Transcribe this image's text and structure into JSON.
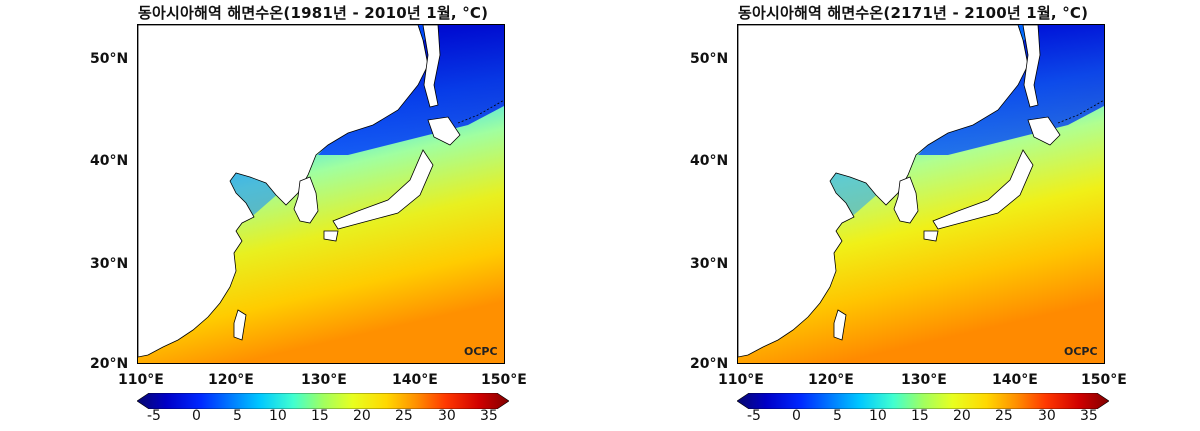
{
  "panels": [
    {
      "title": "동아시아해역 해면수온(1981년 - 2010년 1월, °C)",
      "lat_labels": [
        "50°N",
        "40°N",
        "30°N",
        "20°N"
      ],
      "lon_labels": [
        "110°E",
        "120°E",
        "130°E",
        "140°E",
        "150°E"
      ],
      "watermark": "OCPC",
      "colorbar_ticks": [
        "-5",
        "0",
        "5",
        "10",
        "15",
        "20",
        "25",
        "30",
        "35"
      ]
    },
    {
      "title": "동아시아해역 해면수온(2171년 - 2100년 1월, °C)",
      "lat_labels": [
        "50°N",
        "40°N",
        "30°N",
        "20°N"
      ],
      "lon_labels": [
        "110°E",
        "120°E",
        "130°E",
        "140°E",
        "150°E"
      ],
      "watermark": "OCPC",
      "colorbar_ticks": [
        "-5",
        "0",
        "5",
        "10",
        "15",
        "20",
        "25",
        "30",
        "35"
      ]
    }
  ],
  "colorbar_colors": [
    "#08086e",
    "#0000c8",
    "#0028ff",
    "#0078ff",
    "#00c8ff",
    "#40ffd0",
    "#a0ff60",
    "#e8ff20",
    "#ffd800",
    "#ff9000",
    "#ff3800",
    "#d00000",
    "#800000"
  ],
  "colors": {
    "land": "#ffffff",
    "coast": "#000000",
    "cold_sea": "#0000e0",
    "warm_sea": "#ff9a00"
  }
}
